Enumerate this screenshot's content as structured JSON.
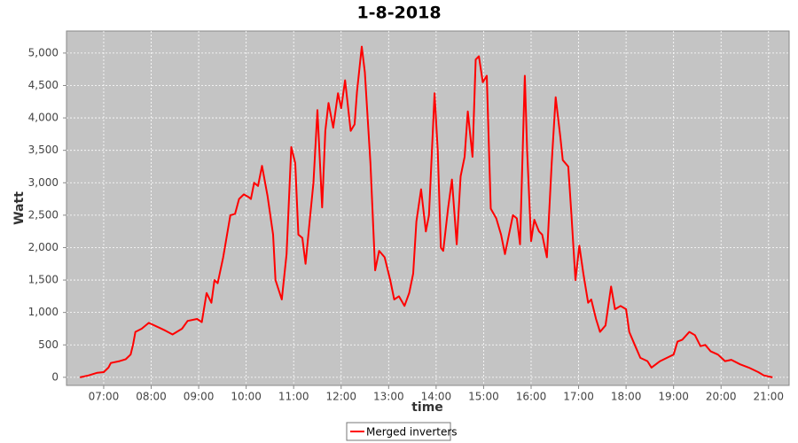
{
  "chart_data": {
    "type": "line",
    "title": "1-8-2018",
    "x_label": "time",
    "y_label": "Watt",
    "x": [
      "06:30",
      "06:41",
      "06:52",
      "07:00",
      "07:06",
      "07:09",
      "07:20",
      "07:28",
      "07:34",
      "07:37",
      "07:40",
      "07:48",
      "07:57",
      "08:11",
      "08:18",
      "08:27",
      "08:39",
      "08:46",
      "08:58",
      "09:04",
      "09:10",
      "09:16",
      "09:20",
      "09:24",
      "09:31",
      "09:40",
      "09:46",
      "09:51",
      "09:57",
      "10:03",
      "10:06",
      "10:10",
      "10:15",
      "10:20",
      "10:27",
      "10:34",
      "10:37",
      "10:45",
      "10:51",
      "10:57",
      "11:02",
      "11:06",
      "11:11",
      "11:15",
      "11:21",
      "11:25",
      "11:30",
      "11:36",
      "11:40",
      "11:44",
      "11:50",
      "11:56",
      "12:00",
      "12:05",
      "12:12",
      "12:17",
      "12:20",
      "12:26",
      "12:30",
      "12:37",
      "12:43",
      "12:48",
      "12:55",
      "13:02",
      "13:07",
      "13:13",
      "13:20",
      "13:26",
      "13:31",
      "13:35",
      "13:41",
      "13:47",
      "13:51",
      "13:58",
      "14:02",
      "14:06",
      "14:09",
      "14:15",
      "14:20",
      "14:26",
      "14:31",
      "14:36",
      "14:40",
      "14:46",
      "14:50",
      "14:54",
      "14:59",
      "15:04",
      "15:09",
      "15:16",
      "15:22",
      "15:27",
      "15:32",
      "15:37",
      "15:42",
      "15:46",
      "15:52",
      "15:55",
      "16:00",
      "16:04",
      "16:10",
      "16:14",
      "16:20",
      "16:26",
      "16:31",
      "16:37",
      "16:40",
      "16:47",
      "16:51",
      "16:56",
      "17:01",
      "17:06",
      "17:12",
      "17:16",
      "17:22",
      "17:27",
      "17:34",
      "17:41",
      "17:46",
      "17:53",
      "18:00",
      "18:04",
      "18:11",
      "18:18",
      "18:27",
      "18:32",
      "18:43",
      "18:55",
      "19:00",
      "19:05",
      "19:11",
      "19:20",
      "19:27",
      "19:34",
      "19:40",
      "19:47",
      "19:56",
      "20:05",
      "20:13",
      "20:24",
      "20:35",
      "20:47",
      "20:54",
      "21:05"
    ],
    "series": [
      {
        "name": "Merged inverters",
        "color": "#ff0000",
        "values": [
          0,
          30,
          70,
          80,
          150,
          220,
          250,
          280,
          350,
          500,
          700,
          750,
          840,
          760,
          720,
          660,
          750,
          870,
          900,
          850,
          1300,
          1150,
          1500,
          1450,
          1850,
          2500,
          2520,
          2750,
          2820,
          2780,
          2750,
          3000,
          2950,
          3260,
          2800,
          2200,
          1500,
          1200,
          1900,
          3550,
          3300,
          2200,
          2150,
          1750,
          2500,
          3000,
          4120,
          2620,
          3800,
          4230,
          3850,
          4380,
          4150,
          4580,
          3800,
          3900,
          4400,
          5100,
          4700,
          3300,
          1650,
          1950,
          1850,
          1500,
          1200,
          1250,
          1100,
          1300,
          1600,
          2400,
          2900,
          2250,
          2500,
          4380,
          3500,
          2000,
          1950,
          2600,
          3050,
          2050,
          3100,
          3400,
          4100,
          3400,
          4900,
          4950,
          4550,
          4650,
          2600,
          2450,
          2200,
          1900,
          2200,
          2500,
          2450,
          2050,
          4650,
          3500,
          2100,
          2430,
          2250,
          2200,
          1850,
          3300,
          4320,
          3700,
          3350,
          3250,
          2500,
          1500,
          2030,
          1600,
          1150,
          1200,
          900,
          700,
          800,
          1400,
          1050,
          1100,
          1050,
          700,
          500,
          300,
          250,
          150,
          250,
          320,
          350,
          550,
          580,
          700,
          650,
          480,
          500,
          400,
          350,
          250,
          270,
          200,
          150,
          80,
          30,
          0
        ]
      }
    ],
    "xlim": [
      "06:13",
      "21:26"
    ],
    "xticks": [
      "07:00",
      "08:00",
      "09:00",
      "10:00",
      "11:00",
      "12:00",
      "13:00",
      "14:00",
      "15:00",
      "16:00",
      "17:00",
      "18:00",
      "19:00",
      "20:00",
      "21:00"
    ],
    "ylim": [
      -125,
      5340
    ],
    "yticks": [
      0,
      500,
      {
        "value": 1000,
        "label": "1,000"
      },
      {
        "value": 1500,
        "label": "1,500"
      },
      {
        "value": 2000,
        "label": "2,000"
      },
      {
        "value": 2500,
        "label": "2,500"
      },
      {
        "value": 3000,
        "label": "3,000"
      },
      {
        "value": 3500,
        "label": "3,500"
      },
      {
        "value": 4000,
        "label": "4,000"
      },
      {
        "value": 4500,
        "label": "4,500"
      },
      {
        "value": 5000,
        "label": "5,000"
      }
    ],
    "grid": true,
    "legend": "bottom"
  }
}
